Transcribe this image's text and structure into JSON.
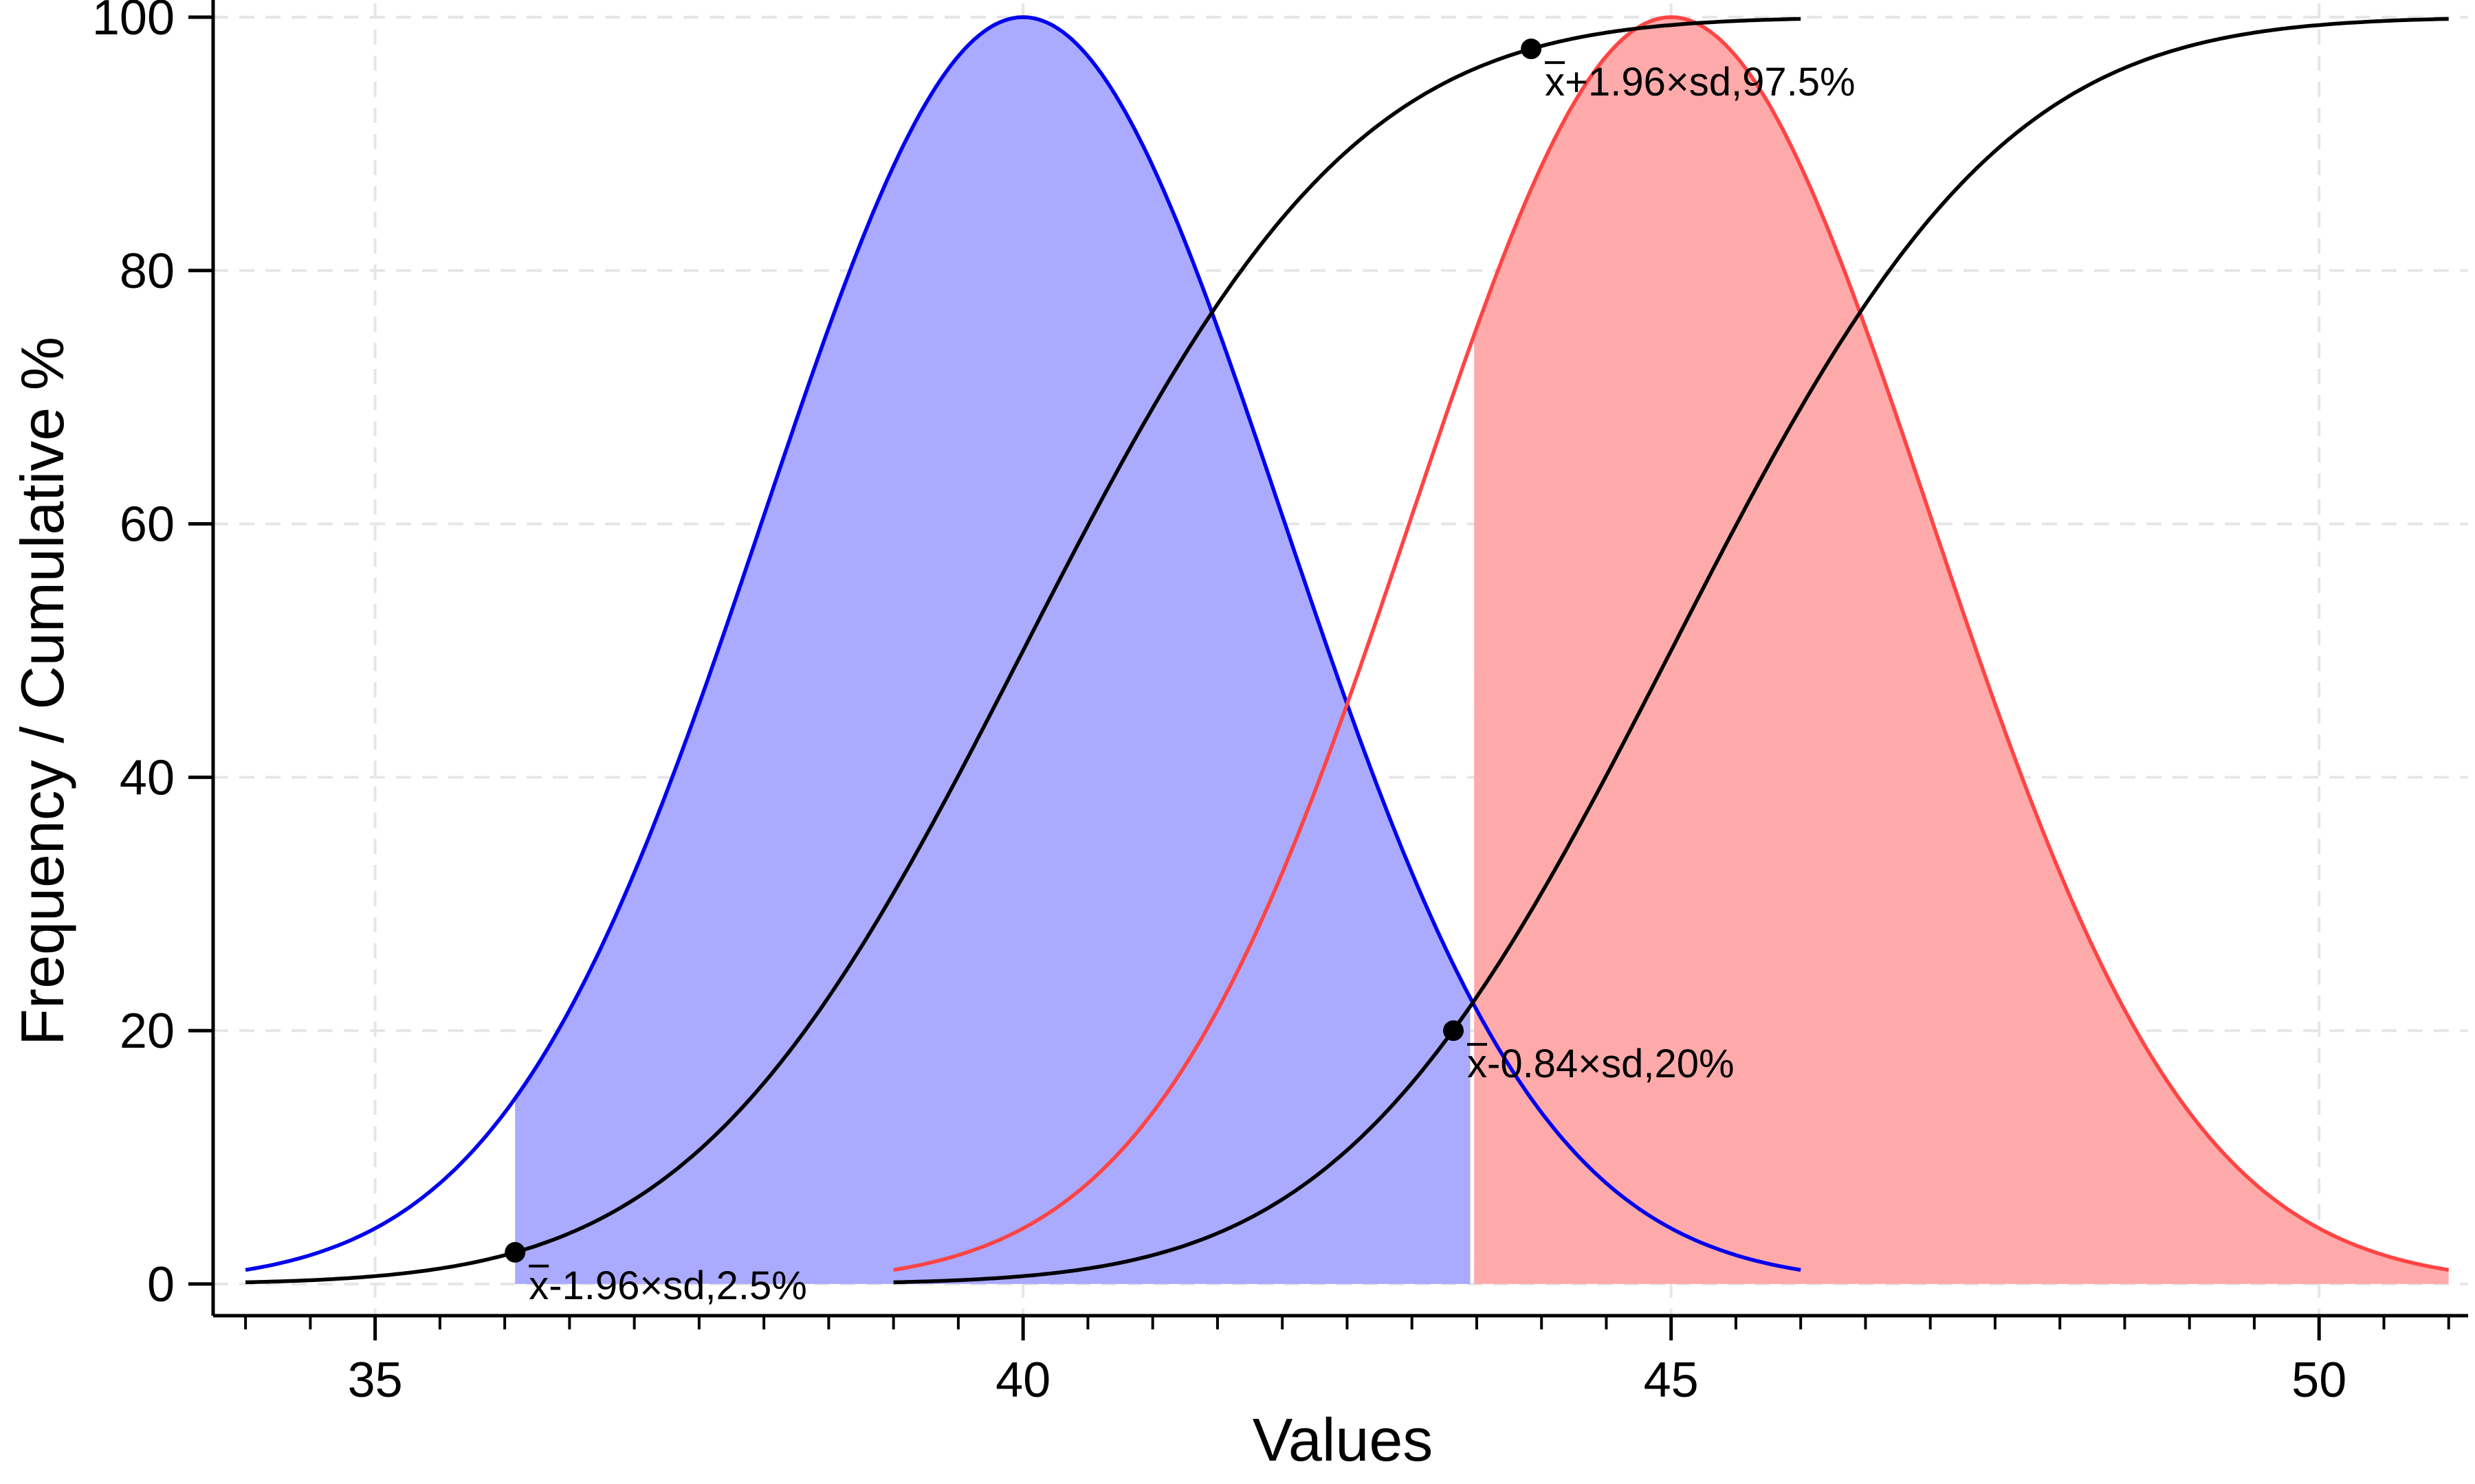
{
  "chart_data": {
    "type": "line",
    "title": "",
    "xlabel": "Values",
    "ylabel": "Frequency / Cumulative %",
    "xlim": [
      33.75,
      51.15
    ],
    "ylim": [
      -2.5,
      100
    ],
    "xticks": [
      35,
      40,
      45,
      50
    ],
    "xtick_labels": [
      "35",
      "40",
      "45",
      "50"
    ],
    "x_minor_step": 0.5,
    "yticks": [
      0,
      20,
      40,
      60,
      80,
      100
    ],
    "ytick_labels": [
      "0",
      "20",
      "40",
      "60",
      "80",
      "100"
    ],
    "grid": true,
    "series": [
      {
        "role": "density",
        "mean": 40,
        "sd": 2,
        "x_range": [
          34,
          46
        ],
        "peak": 100,
        "color": "#0000ee",
        "fill": {
          "from": 36.08,
          "to": 43.45,
          "color": "#aaaaff"
        }
      },
      {
        "role": "density",
        "mean": 45,
        "sd": 2,
        "x_range": [
          39,
          51
        ],
        "peak": 100,
        "color": "#ff4444",
        "fill": {
          "from": 43.48,
          "to": 51,
          "color": "#ffaaaa"
        }
      },
      {
        "role": "cumulative",
        "mean": 40,
        "sd": 2,
        "x_range": [
          34,
          46
        ],
        "color": "#000000"
      },
      {
        "role": "cumulative",
        "mean": 45,
        "sd": 2,
        "x_range": [
          39,
          51
        ],
        "color": "#000000"
      }
    ],
    "points": [
      {
        "x": 36.08,
        "y": 2.5,
        "label": "x̄-1.96×sd,2.5%"
      },
      {
        "x": 43.92,
        "y": 97.5,
        "label": "x̄+1.96×sd,97.5%"
      },
      {
        "x": 43.32,
        "y": 20,
        "label": "x̄-0.84×sd,20%"
      }
    ]
  }
}
